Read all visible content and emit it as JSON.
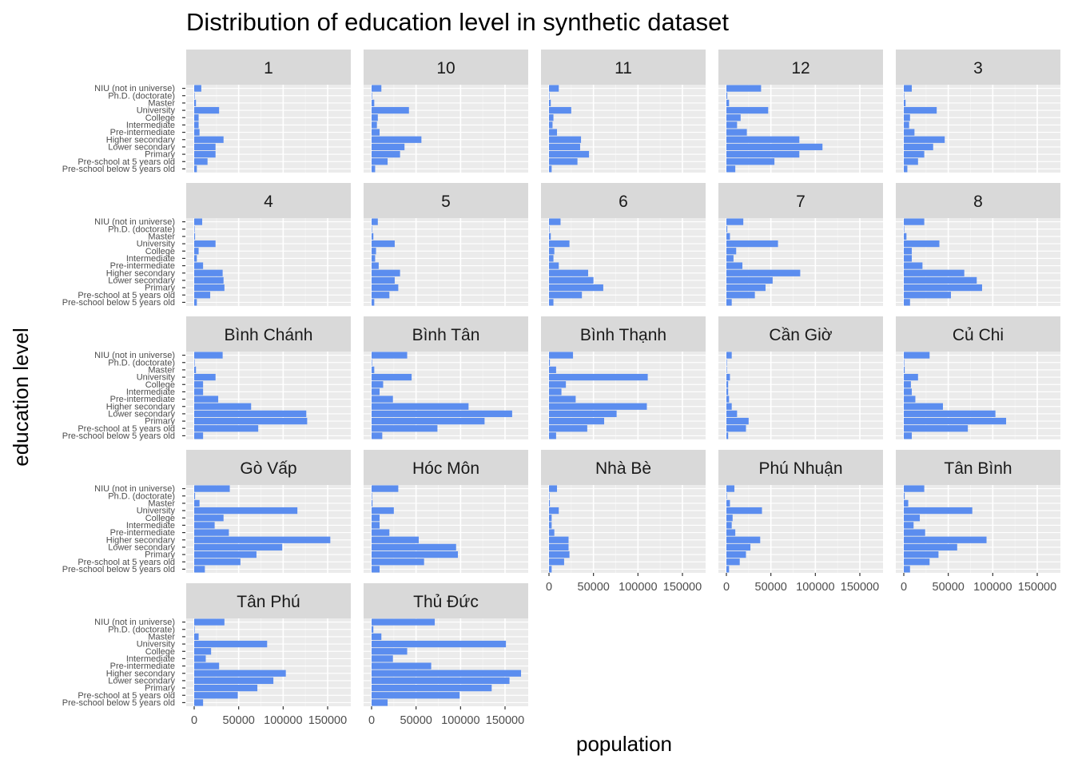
{
  "chart_data": {
    "type": "bar",
    "orientation": "horizontal",
    "title": "Distribution of education level in synthetic dataset",
    "xlabel": "population",
    "ylabel": "education level",
    "xlim": [
      0,
      170000
    ],
    "xticks": [
      0,
      50000,
      100000,
      150000
    ],
    "grid": true,
    "bar_color": "#5B8DEF",
    "categories": [
      "NIU (not in universe)",
      "Ph.D. (doctorate)",
      "Master",
      "University",
      "College",
      "Intermediate",
      "Pre-intermediate",
      "Higher secondary",
      "Lower secondary",
      "Primary",
      "Pre-school at 5 years old",
      "Pre-school below 5 years old"
    ],
    "panels": [
      {
        "name": "1",
        "values": [
          8000,
          500,
          2000,
          28000,
          5000,
          5000,
          6000,
          33000,
          24000,
          24000,
          15000,
          3000
        ]
      },
      {
        "name": "10",
        "values": [
          11000,
          500,
          3000,
          42000,
          7000,
          6000,
          9000,
          56000,
          37000,
          32000,
          18000,
          4000
        ]
      },
      {
        "name": "11",
        "values": [
          11000,
          500,
          2000,
          25000,
          5000,
          4000,
          9000,
          36000,
          35000,
          45000,
          32000,
          3000
        ]
      },
      {
        "name": "12",
        "values": [
          39000,
          1000,
          3000,
          47000,
          16000,
          12000,
          23000,
          82000,
          108000,
          82000,
          54000,
          10000
        ]
      },
      {
        "name": "3",
        "values": [
          9000,
          500,
          2000,
          37000,
          7000,
          6000,
          12000,
          46000,
          33000,
          23000,
          16000,
          4000
        ]
      },
      {
        "name": "4",
        "values": [
          9000,
          500,
          1000,
          24000,
          5000,
          3000,
          10000,
          32000,
          33000,
          34000,
          18000,
          3000
        ]
      },
      {
        "name": "5",
        "values": [
          7000,
          500,
          2000,
          26000,
          5000,
          4000,
          8000,
          32000,
          26000,
          30000,
          20000,
          3000
        ]
      },
      {
        "name": "6",
        "values": [
          13000,
          500,
          2000,
          23000,
          6000,
          5000,
          11000,
          44000,
          50000,
          61000,
          37000,
          5000
        ]
      },
      {
        "name": "7",
        "values": [
          19000,
          1000,
          4000,
          58000,
          11000,
          8000,
          18000,
          83000,
          52000,
          44000,
          32000,
          6000
        ]
      },
      {
        "name": "8",
        "values": [
          23000,
          500,
          3000,
          40000,
          9000,
          9000,
          21000,
          68000,
          82000,
          88000,
          53000,
          7000
        ]
      },
      {
        "name": "Bình Chánh",
        "values": [
          32000,
          500,
          2000,
          24000,
          10000,
          10000,
          27000,
          64000,
          126000,
          127000,
          72000,
          10000
        ]
      },
      {
        "name": "Bình Tân",
        "values": [
          40000,
          500,
          3000,
          45000,
          13000,
          9000,
          24000,
          109000,
          158000,
          127000,
          74000,
          12000
        ]
      },
      {
        "name": "Bình Thạnh",
        "values": [
          27000,
          1000,
          8000,
          111000,
          19000,
          14000,
          30000,
          110000,
          76000,
          62000,
          43000,
          8000
        ]
      },
      {
        "name": "Cần Giờ",
        "values": [
          6000,
          200,
          500,
          4000,
          2000,
          2000,
          3000,
          6000,
          12000,
          25000,
          22000,
          2000
        ]
      },
      {
        "name": "Củ Chi",
        "values": [
          29000,
          200,
          1000,
          16000,
          8000,
          9000,
          13000,
          44000,
          103000,
          115000,
          72000,
          9000
        ]
      },
      {
        "name": "Gò Vấp",
        "values": [
          40000,
          1000,
          6000,
          116000,
          33000,
          23000,
          39000,
          153000,
          99000,
          70000,
          52000,
          12000
        ]
      },
      {
        "name": "Hóc Môn",
        "values": [
          30000,
          200,
          1000,
          25000,
          9000,
          9000,
          20000,
          53000,
          95000,
          97000,
          59000,
          9000
        ]
      },
      {
        "name": "Nhà Bè",
        "values": [
          9000,
          200,
          1000,
          11000,
          3000,
          3000,
          6000,
          22000,
          22000,
          23000,
          17000,
          3000
        ]
      },
      {
        "name": "Phú Nhuận",
        "values": [
          9000,
          500,
          4000,
          40000,
          7000,
          6000,
          10000,
          38000,
          27000,
          22000,
          15000,
          3000
        ]
      },
      {
        "name": "Tân Bình",
        "values": [
          23000,
          1000,
          5000,
          77000,
          18000,
          11000,
          24000,
          93000,
          60000,
          39000,
          29000,
          7000
        ]
      },
      {
        "name": "Tân Phú",
        "values": [
          34000,
          500,
          5000,
          82000,
          19000,
          13000,
          28000,
          103000,
          89000,
          71000,
          49000,
          10000
        ]
      },
      {
        "name": "Thủ Đức",
        "values": [
          71000,
          2000,
          11000,
          151000,
          40000,
          24000,
          67000,
          168000,
          155000,
          135000,
          99000,
          18000
        ]
      }
    ]
  }
}
